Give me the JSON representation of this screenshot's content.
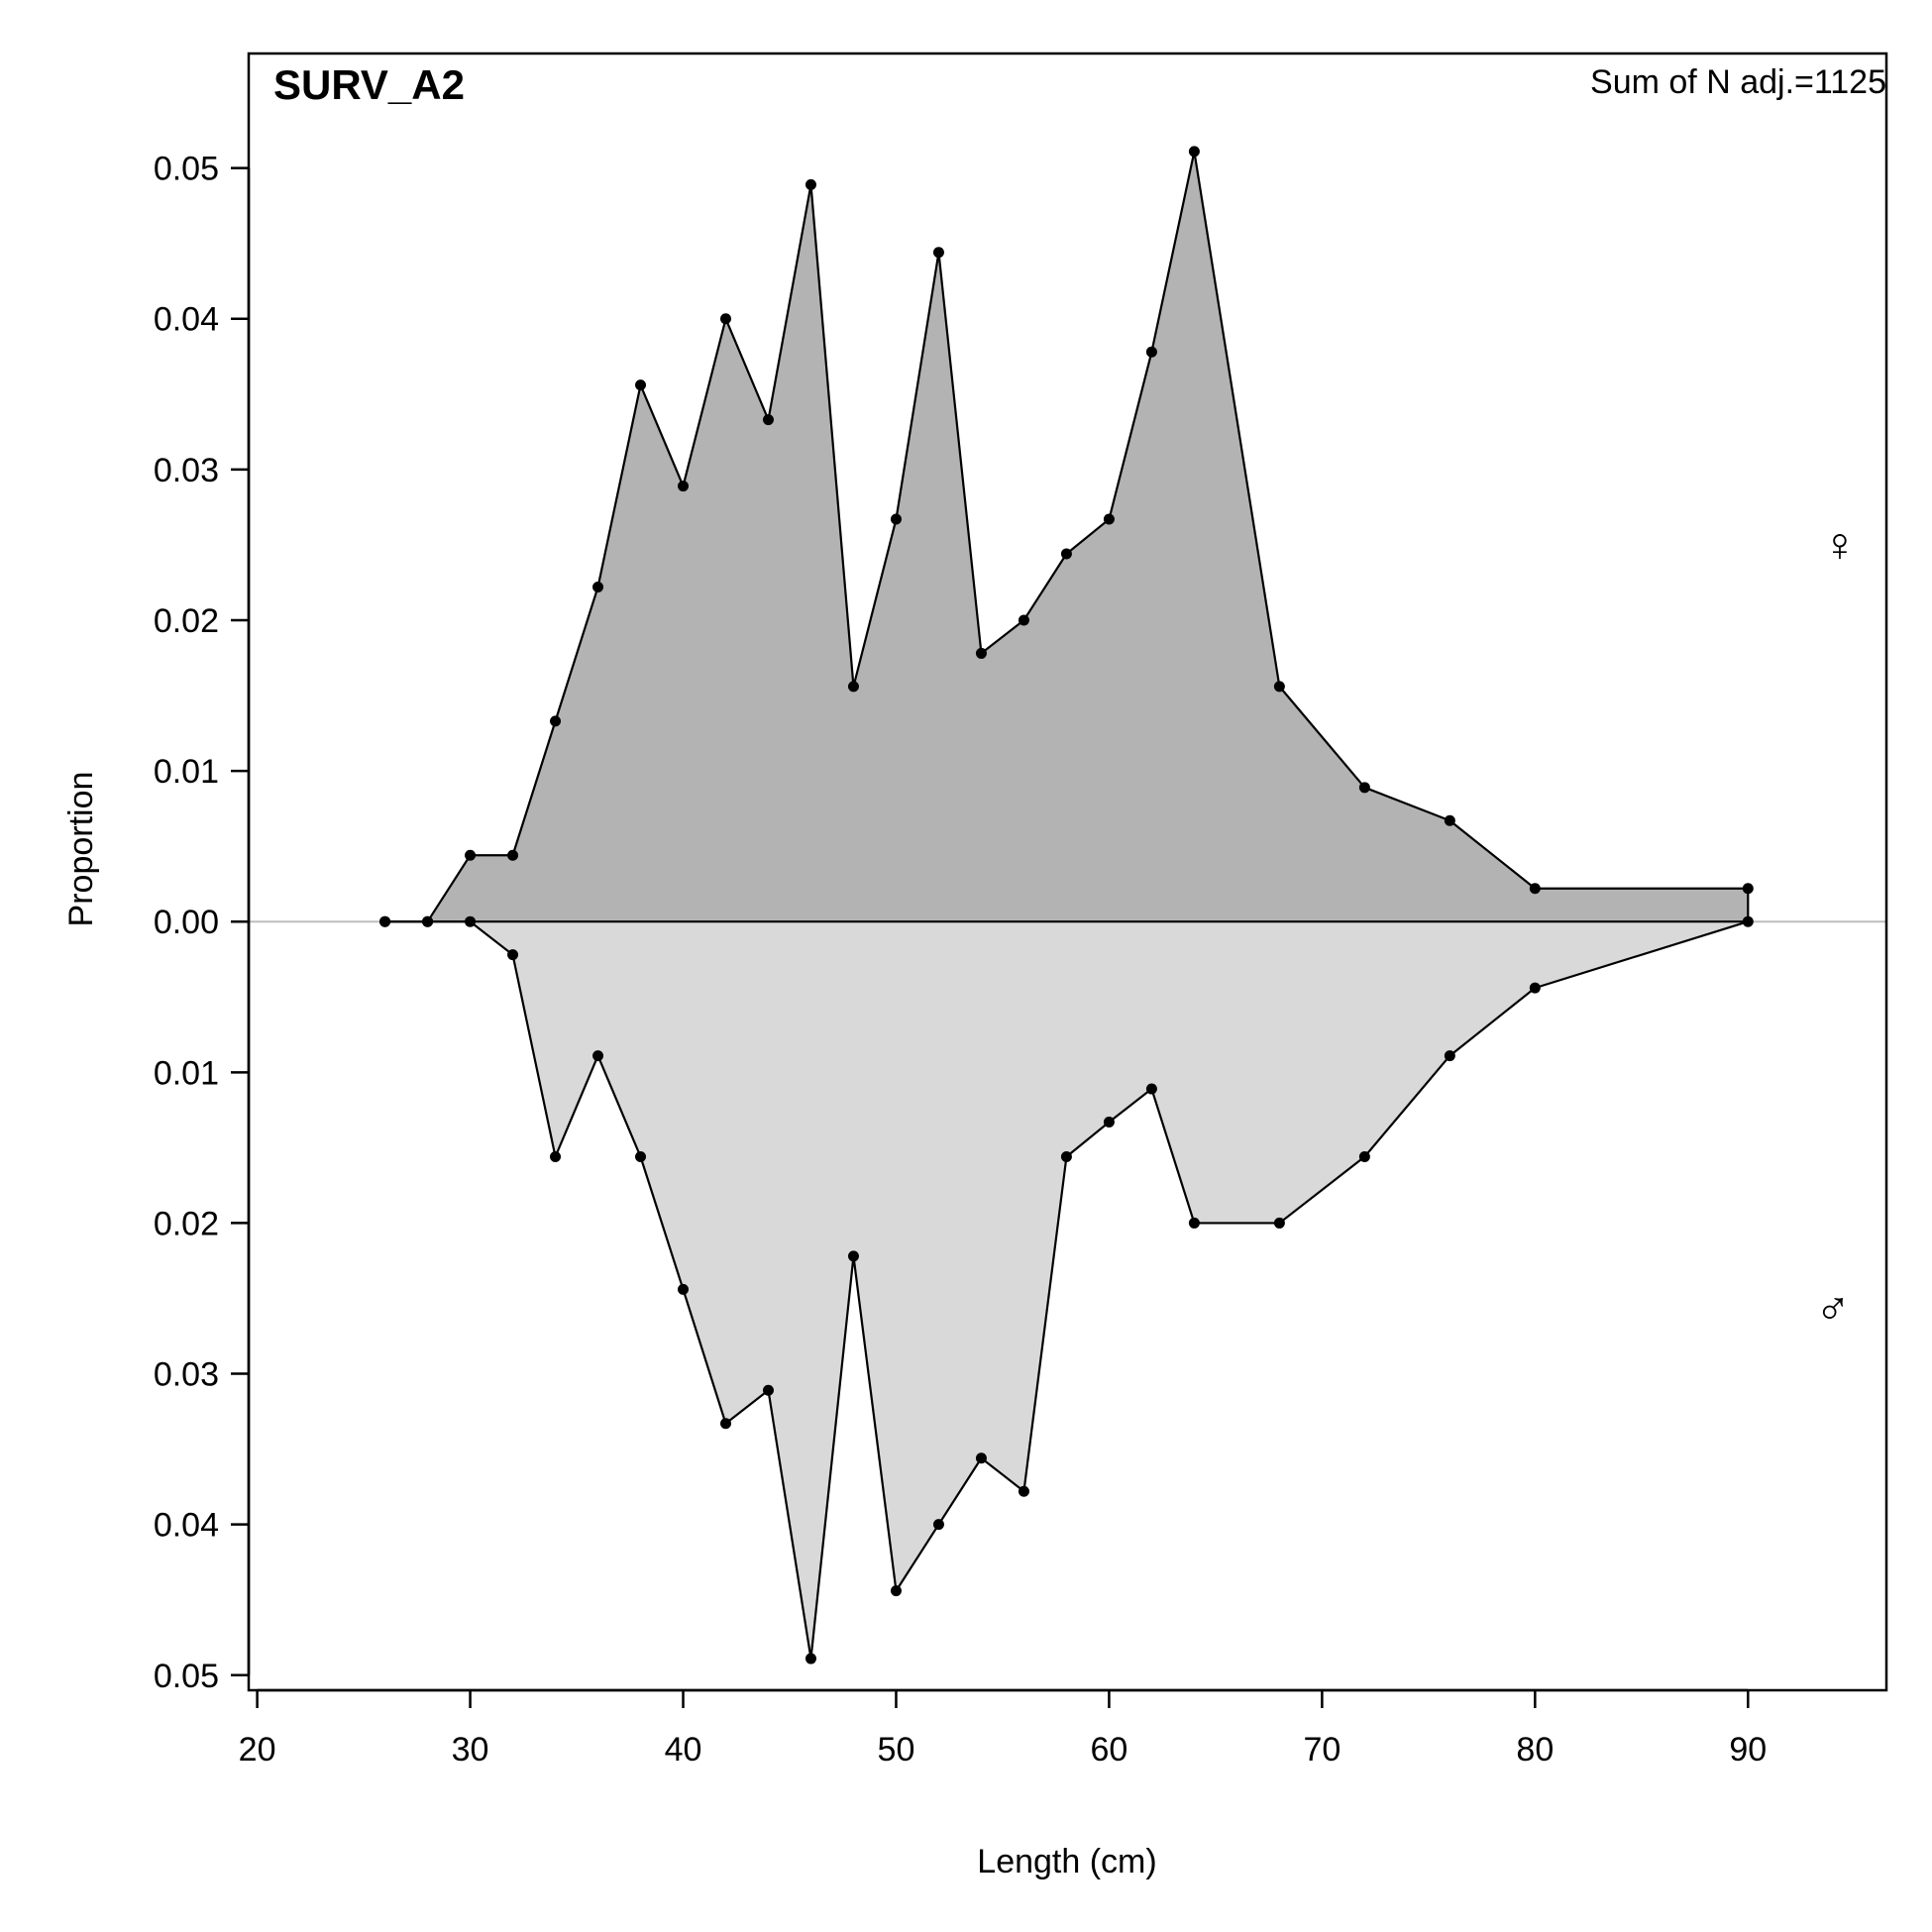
{
  "chart_data": {
    "type": "area",
    "title": "SURV_A2",
    "annotation": "Sum of N adj.=1125",
    "xlabel": "Length (cm)",
    "ylabel": "Proportion",
    "xlim": [
      19.6,
      96.5
    ],
    "ylim": [
      -0.051,
      0.0576
    ],
    "x_ticks": [
      20,
      30,
      40,
      50,
      60,
      70,
      80,
      90
    ],
    "x_tick_labels": [
      "20",
      "30",
      "40",
      "50",
      "60",
      "70",
      "80",
      "90"
    ],
    "y_ticks": [
      -0.05,
      -0.04,
      -0.03,
      -0.02,
      -0.01,
      0,
      0.01,
      0.02,
      0.03,
      0.04,
      0.05
    ],
    "y_tick_labels": [
      "0.05",
      "0.04",
      "0.03",
      "0.02",
      "0.01",
      "0.00",
      "0.01",
      "0.02",
      "0.03",
      "0.04",
      "0.05"
    ],
    "x": [
      26,
      28,
      30,
      32,
      34,
      36,
      38,
      40,
      42,
      44,
      46,
      48,
      50,
      52,
      54,
      56,
      58,
      60,
      62,
      64,
      68,
      72,
      76,
      80,
      90
    ],
    "series": [
      {
        "symbol": "♀",
        "color": "#b3b3b3",
        "symbol_color": "#cc0000",
        "values": [
          0,
          0,
          0.0044,
          0.0044,
          0.0133,
          0.0222,
          0.0356,
          0.0289,
          0.04,
          0.0333,
          0.0489,
          0.0156,
          0.0267,
          0.0444,
          0.0178,
          0.02,
          0.0244,
          0.0267,
          0.0378,
          0.0511,
          0.0156,
          0.0089,
          0.0067,
          0.0022,
          0.0022
        ]
      },
      {
        "symbol": "♂",
        "color": "#d9d9d9",
        "symbol_color": "#0000cc",
        "values": [
          0,
          0,
          0,
          0.0022,
          0.0156,
          0.0089,
          0.0156,
          0.0244,
          0.0333,
          0.0311,
          0.0489,
          0.0222,
          0.0444,
          0.04,
          0.0356,
          0.0378,
          0.0156,
          0.0133,
          0.0111,
          0.02,
          0.02,
          0.0156,
          0.0089,
          0.0044,
          0
        ]
      }
    ],
    "grid": false,
    "zero_line_color": "#bdbdbd"
  }
}
